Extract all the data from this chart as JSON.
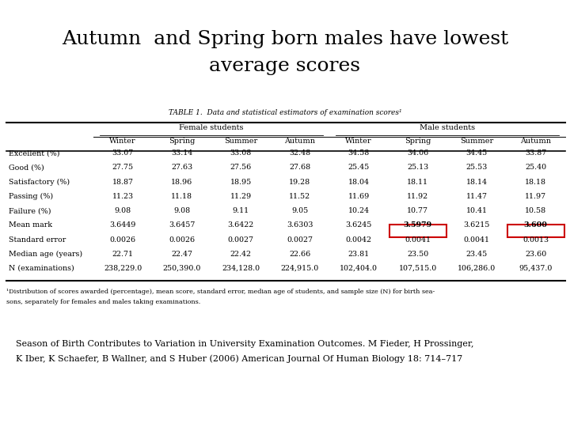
{
  "title_line1": "Autumn  and Spring born males have lowest",
  "title_line2": "average scores",
  "table_caption": "TABLE 1.  Data and statistical estimators of examination scores¹",
  "seasons": [
    "Winter",
    "Spring",
    "Summer",
    "Autumn"
  ],
  "row_labels": [
    "Excellent (%)",
    "Good (%)",
    "Satisfactory (%)",
    "Passing (%)",
    "Failure (%)",
    "Mean mark",
    "Standard error",
    "Median age (years)",
    "N (examinations)"
  ],
  "female_data": [
    [
      "33.07",
      "33.14",
      "33.08",
      "32.48"
    ],
    [
      "27.75",
      "27.63",
      "27.56",
      "27.68"
    ],
    [
      "18.87",
      "18.96",
      "18.95",
      "19.28"
    ],
    [
      "11.23",
      "11.18",
      "11.29",
      "11.52"
    ],
    [
      "9.08",
      "9.08",
      "9.11",
      "9.05"
    ],
    [
      "3.6449",
      "3.6457",
      "3.6422",
      "3.6303"
    ],
    [
      "0.0026",
      "0.0026",
      "0.0027",
      "0.0027"
    ],
    [
      "22.71",
      "22.47",
      "22.42",
      "22.66"
    ],
    [
      "238,229.0",
      "250,390.0",
      "234,128.0",
      "224,915.0"
    ]
  ],
  "male_data": [
    [
      "34.58",
      "34.06",
      "34.45",
      "33.87"
    ],
    [
      "25.45",
      "25.13",
      "25.53",
      "25.40"
    ],
    [
      "18.04",
      "18.11",
      "18.14",
      "18.18"
    ],
    [
      "11.69",
      "11.92",
      "11.47",
      "11.97"
    ],
    [
      "10.24",
      "10.77",
      "10.41",
      "10.58"
    ],
    [
      "3.6245",
      "3.5979",
      "3.6215",
      "3.600"
    ],
    [
      "0.0042",
      "0.0041",
      "0.0041",
      "0.0013"
    ],
    [
      "23.81",
      "23.50",
      "23.45",
      "23.60"
    ],
    [
      "102,404.0",
      "107,515.0",
      "106,286.0",
      "95,437.0"
    ]
  ],
  "highlight_color": "#cc0000",
  "footnote1": "¹Distribution of scores awarded (percentage), mean score, standard error, median age of students, and sample size (N) for birth sea-",
  "footnote2": "sons, separately for females and males taking examinations.",
  "citation": "Season of Birth Contributes to Variation in University Examination Outcomes. M Fieder, H Prossinger,",
  "citation2": "K Iber, K Schaefer, B Wallner, and S Huber (2006) American Journal Of Human Biology 18: 714–717",
  "bg_color": "#ffffff"
}
